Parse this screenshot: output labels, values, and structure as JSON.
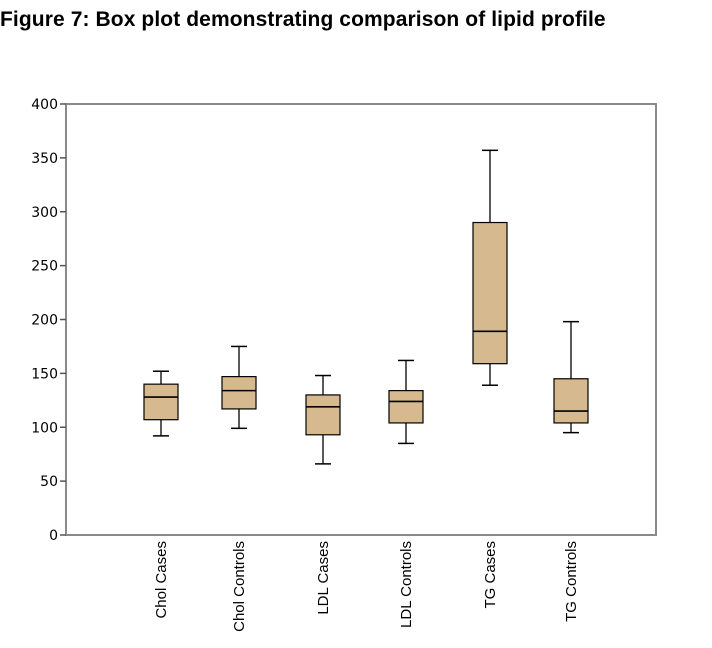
{
  "figure": {
    "title": "Figure 7: Box plot demonstrating comparison of lipid profile"
  },
  "chart_data": {
    "type": "box",
    "title": "Figure 7: Box plot demonstrating comparison of lipid profile",
    "xlabel": "",
    "ylabel": "",
    "ylim": [
      0,
      400
    ],
    "yticks": [
      0,
      50,
      100,
      150,
      200,
      250,
      300,
      350,
      400
    ],
    "grid": false,
    "legend": "none",
    "box_color": "#d6b98f",
    "categories": [
      "Chol Cases",
      "Chol Controls",
      "LDL Cases",
      "LDL Controls",
      "TG Cases",
      "TG Controls"
    ],
    "boxes": [
      {
        "label": "Chol Cases",
        "min": 92,
        "q1": 107,
        "median": 128,
        "q3": 140,
        "max": 152
      },
      {
        "label": "Chol Controls",
        "min": 99,
        "q1": 117,
        "median": 134,
        "q3": 147,
        "max": 175
      },
      {
        "label": "LDL Cases",
        "min": 66,
        "q1": 93,
        "median": 119,
        "q3": 130,
        "max": 148
      },
      {
        "label": "LDL Controls",
        "min": 85,
        "q1": 104,
        "median": 124,
        "q3": 134,
        "max": 162
      },
      {
        "label": "TG Cases",
        "min": 139,
        "q1": 159,
        "median": 189,
        "q3": 290,
        "max": 357
      },
      {
        "label": "TG Controls",
        "min": 95,
        "q1": 104,
        "median": 115,
        "q3": 145,
        "max": 198
      }
    ]
  }
}
